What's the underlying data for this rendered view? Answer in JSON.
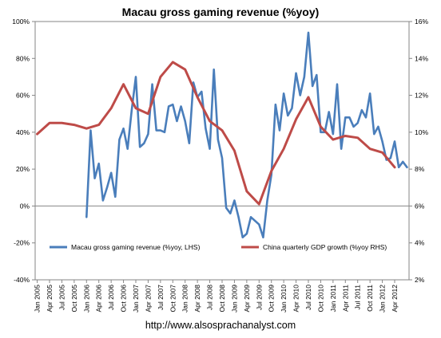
{
  "title": "Macau gross gaming revenue (%yoy)",
  "url": "http://www.alsosprachanalyst.com",
  "chart_data": {
    "type": "line",
    "title": "Macau gross gaming revenue (%yoy)",
    "x_labels": [
      "Jan 2005",
      "Apr 2005",
      "Jul 2005",
      "Oct 2005",
      "Jan 2006",
      "Apr 2006",
      "Jul 2006",
      "Oct 2006",
      "Jan 2007",
      "Apr 2007",
      "Jul 2007",
      "Oct 2007",
      "Jan 2008",
      "Apr 2008",
      "Jul 2008",
      "Oct 2008",
      "Jan 2009",
      "Apr 2009",
      "Jul 2009",
      "Oct 2009",
      "Jan 2010",
      "Apr 2010",
      "Jul 2010",
      "Oct 2010",
      "Jan 2011",
      "Apr 2011",
      "Jul 2011",
      "Oct 2011",
      "Jan 2012",
      "Apr 2012"
    ],
    "x_tick_labels": [
      "Jan 2005",
      "Apr 2005",
      "Jul 2005",
      "Oct 2005",
      "Jan 2006",
      "Apr 2006",
      "Jul 2006",
      "Oct 2006",
      "Jan 2007",
      "Apr 2007",
      "Jul 2007",
      "Oct 2007",
      "Jan 2008",
      "Apr 2008",
      "Jul 2008",
      "Oct 2008",
      "Jan 2009",
      "Apr 2009",
      "Jul 2009",
      "Oct 2009",
      "Jan 2010",
      "Apr 2010",
      "Jul 2010",
      "Oct 2010",
      "Jan 2011",
      "Apr 2011",
      "Jul 2011",
      "Oct 2011",
      "Jan 2012",
      "Apr 2012"
    ],
    "y_left": {
      "ticks": [
        "-40%",
        "-20%",
        "0%",
        "20%",
        "40%",
        "60%",
        "80%",
        "100%"
      ],
      "ylim": [
        -40,
        100
      ]
    },
    "y_right": {
      "ticks": [
        "2%",
        "4%",
        "6%",
        "8%",
        "10%",
        "12%",
        "14%",
        "16%"
      ],
      "ylim": [
        2,
        16
      ]
    },
    "zero_line": 0,
    "legend_placement": "bottom",
    "series": [
      {
        "name": "Macau gross gaming revenue (%yoy, LHS)",
        "axis": "left",
        "color": "#4a7ebb",
        "points": [
          [
            "Jan 2006",
            -6
          ],
          [
            "Feb 2006",
            41
          ],
          [
            "Mar 2006",
            15
          ],
          [
            "Apr 2006",
            23
          ],
          [
            "May 2006",
            3
          ],
          [
            "Jun 2006",
            10
          ],
          [
            "Jul 2006",
            18
          ],
          [
            "Aug 2006",
            5
          ],
          [
            "Sep 2006",
            36
          ],
          [
            "Oct 2006",
            42
          ],
          [
            "Nov 2006",
            31
          ],
          [
            "Dec 2006",
            52
          ],
          [
            "Jan 2007",
            70
          ],
          [
            "Feb 2007",
            32
          ],
          [
            "Mar 2007",
            34
          ],
          [
            "Apr 2007",
            39
          ],
          [
            "May 2007",
            66
          ],
          [
            "Jun 2007",
            41
          ],
          [
            "Jul 2007",
            41
          ],
          [
            "Aug 2007",
            40
          ],
          [
            "Sep 2007",
            54
          ],
          [
            "Oct 2007",
            55
          ],
          [
            "Nov 2007",
            46
          ],
          [
            "Dec 2007",
            54
          ],
          [
            "Jan 2008",
            46
          ],
          [
            "Feb 2008",
            34
          ],
          [
            "Mar 2008",
            67
          ],
          [
            "Apr 2008",
            59
          ],
          [
            "May 2008",
            62
          ],
          [
            "Jun 2008",
            42
          ],
          [
            "Jul 2008",
            31
          ],
          [
            "Aug 2008",
            74
          ],
          [
            "Sep 2008",
            36
          ],
          [
            "Oct 2008",
            26
          ],
          [
            "Nov 2008",
            -1
          ],
          [
            "Dec 2008",
            -4
          ],
          [
            "Jan 2009",
            3
          ],
          [
            "Feb 2009",
            -6
          ],
          [
            "Mar 2009",
            -17
          ],
          [
            "Apr 2009",
            -15
          ],
          [
            "May 2009",
            -6
          ],
          [
            "Jun 2009",
            -8
          ],
          [
            "Jul 2009",
            -10
          ],
          [
            "Aug 2009",
            -17
          ],
          [
            "Sep 2009",
            3
          ],
          [
            "Oct 2009",
            17
          ],
          [
            "Nov 2009",
            55
          ],
          [
            "Dec 2009",
            41
          ],
          [
            "Jan 2010",
            61
          ],
          [
            "Feb 2010",
            49
          ],
          [
            "Mar 2010",
            53
          ],
          [
            "Apr 2010",
            72
          ],
          [
            "May 2010",
            60
          ],
          [
            "Jun 2010",
            70
          ],
          [
            "Jul 2010",
            94
          ],
          [
            "Aug 2010",
            65
          ],
          [
            "Sep 2010",
            71
          ],
          [
            "Oct 2010",
            40
          ],
          [
            "Nov 2010",
            40
          ],
          [
            "Dec 2010",
            51
          ],
          [
            "Jan 2011",
            39
          ],
          [
            "Feb 2011",
            66
          ],
          [
            "Mar 2011",
            31
          ],
          [
            "Apr 2011",
            48
          ],
          [
            "May 2011",
            48
          ],
          [
            "Jun 2011",
            43
          ],
          [
            "Jul 2011",
            45
          ],
          [
            "Aug 2011",
            52
          ],
          [
            "Sep 2011",
            48
          ],
          [
            "Oct 2011",
            61
          ],
          [
            "Nov 2011",
            39
          ],
          [
            "Dec 2011",
            43
          ],
          [
            "Jan 2012",
            35
          ],
          [
            "Feb 2012",
            25
          ],
          [
            "Mar 2012",
            26
          ],
          [
            "Apr 2012",
            35
          ],
          [
            "May 2012",
            21
          ],
          [
            "Jun 2012",
            24
          ],
          [
            "Jul 2012",
            21
          ]
        ]
      },
      {
        "name": "China quarterly GDP growth (%yoy RHS)",
        "axis": "right",
        "color": "#be4b48",
        "points": [
          [
            "Jan 2005",
            9.9
          ],
          [
            "Apr 2005",
            10.5
          ],
          [
            "Jul 2005",
            10.5
          ],
          [
            "Oct 2005",
            10.4
          ],
          [
            "Jan 2006",
            10.2
          ],
          [
            "Apr 2006",
            10.4
          ],
          [
            "Jul 2006",
            11.3
          ],
          [
            "Oct 2006",
            12.6
          ],
          [
            "Jan 2007",
            11.3
          ],
          [
            "Apr 2007",
            11.0
          ],
          [
            "Jul 2007",
            13.0
          ],
          [
            "Oct 2007",
            13.8
          ],
          [
            "Jan 2008",
            13.4
          ],
          [
            "Apr 2008",
            11.9
          ],
          [
            "Jul 2008",
            10.6
          ],
          [
            "Oct 2008",
            10.1
          ],
          [
            "Jan 2009",
            9.0
          ],
          [
            "Apr 2009",
            6.8
          ],
          [
            "Jul 2009",
            6.1
          ],
          [
            "Oct 2009",
            7.9
          ],
          [
            "Jan 2010",
            9.1
          ],
          [
            "Apr 2010",
            10.7
          ],
          [
            "Jul 2010",
            11.9
          ],
          [
            "Oct 2010",
            10.3
          ],
          [
            "Jan 2011",
            9.6
          ],
          [
            "Apr 2011",
            9.8
          ],
          [
            "Jul 2011",
            9.7
          ],
          [
            "Oct 2011",
            9.1
          ],
          [
            "Jan 2012",
            8.9
          ],
          [
            "Apr 2012",
            8.1
          ]
        ]
      }
    ]
  }
}
